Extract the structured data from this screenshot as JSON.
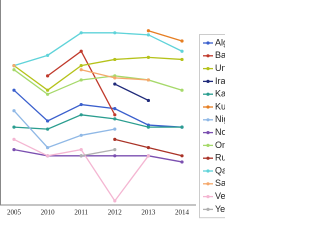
{
  "chart_data": {
    "type": "line",
    "categories": [
      "2005",
      "2010",
      "2011",
      "2012",
      "2013",
      "2014"
    ],
    "ylim": [
      0,
      100
    ],
    "series": [
      {
        "name": "Alg",
        "color": "#3a5fcd",
        "values": [
          56,
          41,
          49,
          47,
          39,
          38
        ]
      },
      {
        "name": "Bah",
        "color": "#c0392b",
        "values": [
          null,
          63,
          75,
          44,
          null,
          null
        ]
      },
      {
        "name": "Uni",
        "color": "#b5c21a",
        "values": [
          68,
          56,
          68,
          71,
          72,
          71
        ]
      },
      {
        "name": "Irac",
        "color": "#1f2a7a",
        "values": [
          null,
          null,
          null,
          59,
          51,
          null
        ]
      },
      {
        "name": "Kaz",
        "color": "#2a9d8f",
        "values": [
          38,
          37,
          44,
          42,
          38,
          38
        ]
      },
      {
        "name": "Kuv",
        "color": "#e67e22",
        "values": [
          null,
          null,
          null,
          null,
          85,
          80
        ]
      },
      {
        "name": "Nig",
        "color": "#8fb8e6",
        "values": [
          46,
          28,
          34,
          37,
          null,
          null
        ]
      },
      {
        "name": "Nor",
        "color": "#7b4fb0",
        "values": [
          27,
          24,
          24,
          24,
          24,
          21
        ]
      },
      {
        "name": "Om",
        "color": "#a6d96a",
        "values": [
          66,
          54,
          61,
          63,
          61,
          56
        ]
      },
      {
        "name": "Rus",
        "color": "#a93226",
        "values": [
          null,
          null,
          null,
          32,
          28,
          24
        ]
      },
      {
        "name": "Qat",
        "color": "#5fd3d9",
        "values": [
          68,
          73,
          84,
          84,
          83,
          75
        ]
      },
      {
        "name": "Sau",
        "color": "#f5a86b",
        "values": [
          68,
          null,
          66,
          62,
          61,
          null
        ]
      },
      {
        "name": "Ven",
        "color": "#f4b6d2",
        "values": [
          32,
          24,
          27,
          2,
          24,
          null
        ]
      },
      {
        "name": "Yer",
        "color": "#b0b0b0",
        "values": [
          null,
          null,
          24,
          27,
          null,
          null
        ]
      }
    ]
  }
}
